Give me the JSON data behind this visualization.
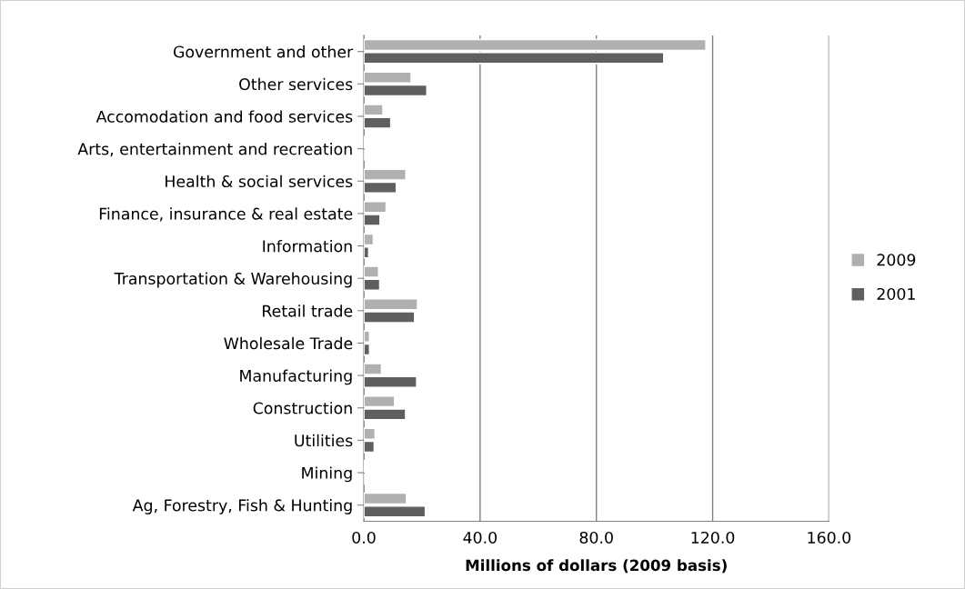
{
  "chart_data": {
    "type": "bar",
    "orientation": "horizontal",
    "xlabel": "Millions of dollars (2009 basis)",
    "categories": [
      "Government and other",
      "Other services",
      "Accomodation and food services",
      "Arts, entertainment and recreation",
      "Health & social services",
      "Finance, insurance & real estate",
      "Information",
      "Transportation & Warehousing",
      "Retail trade",
      "Wholesale Trade",
      "Manufacturing",
      "Construction",
      "Utilities",
      "Mining",
      "Ag, Forestry, Fish & Hunting"
    ],
    "series": [
      {
        "name": "2009",
        "color": "#b0b0b0",
        "values": [
          117.7,
          16.3,
          6.6,
          0.5,
          14.5,
          7.7,
          3.3,
          5.1,
          18.5,
          2.0,
          6.1,
          10.6,
          3.9,
          0.5,
          14.7
        ]
      },
      {
        "name": "2001",
        "color": "#5f5f5f",
        "values": [
          103.2,
          21.7,
          9.3,
          null,
          11.2,
          5.6,
          1.7,
          5.5,
          17.5,
          2.0,
          18.2,
          14.4,
          3.6,
          null,
          21.2
        ]
      }
    ],
    "xlim": [
      0,
      160
    ],
    "xticks": [
      {
        "value": 0,
        "label": "0.0"
      },
      {
        "value": 40,
        "label": "40.0"
      },
      {
        "value": 80,
        "label": "80.0"
      },
      {
        "value": 120,
        "label": "120.0"
      },
      {
        "value": 160,
        "label": "160.0"
      }
    ],
    "grid": "x",
    "legend": "right"
  }
}
